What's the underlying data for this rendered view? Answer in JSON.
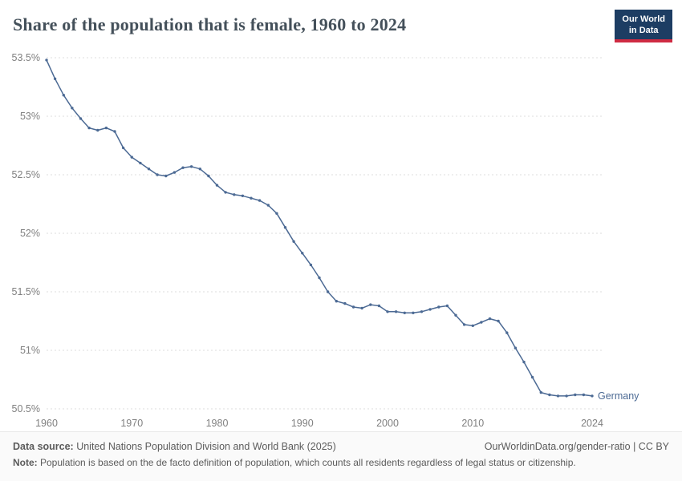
{
  "header": {
    "title": "Share of the population that is female, 1960 to 2024",
    "logo_line1": "Our World",
    "logo_line2": "in Data"
  },
  "chart_data": {
    "type": "line",
    "title": "Share of the population that is female, 1960 to 2024",
    "x": [
      1960,
      1961,
      1962,
      1963,
      1964,
      1965,
      1966,
      1967,
      1968,
      1969,
      1970,
      1971,
      1972,
      1973,
      1974,
      1975,
      1976,
      1977,
      1978,
      1979,
      1980,
      1981,
      1982,
      1983,
      1984,
      1985,
      1986,
      1987,
      1988,
      1989,
      1990,
      1991,
      1992,
      1993,
      1994,
      1995,
      1996,
      1997,
      1998,
      1999,
      2000,
      2001,
      2002,
      2003,
      2004,
      2005,
      2006,
      2007,
      2008,
      2009,
      2010,
      2011,
      2012,
      2013,
      2014,
      2015,
      2016,
      2017,
      2018,
      2019,
      2020,
      2021,
      2022,
      2023,
      2024
    ],
    "series": [
      {
        "name": "Germany",
        "color": "#4c6a94",
        "values": [
          53.48,
          53.32,
          53.18,
          53.07,
          52.98,
          52.9,
          52.88,
          52.9,
          52.87,
          52.73,
          52.65,
          52.6,
          52.55,
          52.5,
          52.49,
          52.52,
          52.56,
          52.57,
          52.55,
          52.49,
          52.41,
          52.35,
          52.33,
          52.32,
          52.3,
          52.28,
          52.24,
          52.17,
          52.05,
          51.93,
          51.83,
          51.73,
          51.62,
          51.5,
          51.42,
          51.4,
          51.37,
          51.36,
          51.39,
          51.38,
          51.33,
          51.33,
          51.32,
          51.32,
          51.33,
          51.35,
          51.37,
          51.38,
          51.3,
          51.22,
          51.21,
          51.24,
          51.27,
          51.25,
          51.15,
          51.02,
          50.9,
          50.77,
          50.64,
          50.62,
          50.61,
          50.61,
          50.62,
          50.62,
          50.61
        ]
      }
    ],
    "xlabel": "",
    "ylabel": "",
    "xlim": [
      1960,
      2024
    ],
    "ylim": [
      50.5,
      53.5
    ],
    "yticks": [
      {
        "value": 50.5,
        "label": "50.5%"
      },
      {
        "value": 51,
        "label": "51%"
      },
      {
        "value": 51.5,
        "label": "51.5%"
      },
      {
        "value": 52,
        "label": "52%"
      },
      {
        "value": 52.5,
        "label": "52.5%"
      },
      {
        "value": 53,
        "label": "53%"
      },
      {
        "value": 53.5,
        "label": "53.5%"
      }
    ],
    "xticks": [
      {
        "value": 1960,
        "label": "1960"
      },
      {
        "value": 1970,
        "label": "1970"
      },
      {
        "value": 1980,
        "label": "1980"
      },
      {
        "value": 1990,
        "label": "1990"
      },
      {
        "value": 2000,
        "label": "2000"
      },
      {
        "value": 2010,
        "label": "2010"
      },
      {
        "value": 2024,
        "label": "2024"
      }
    ],
    "grid": true,
    "legend_position": "end-of-line",
    "end_label": "Germany",
    "line_color": "#4c6a94",
    "axis_text_color": "#808080",
    "grid_color": "#dcdcdc"
  },
  "footer": {
    "datasource_label": "Data source:",
    "datasource_text": " United Nations Population Division and World Bank (2025)",
    "link_text": "OurWorldinData.org/gender-ratio | CC BY",
    "note_label": "Note:",
    "note_text": " Population is based on the de facto definition of population, which counts all residents regardless of legal status or citizenship."
  }
}
